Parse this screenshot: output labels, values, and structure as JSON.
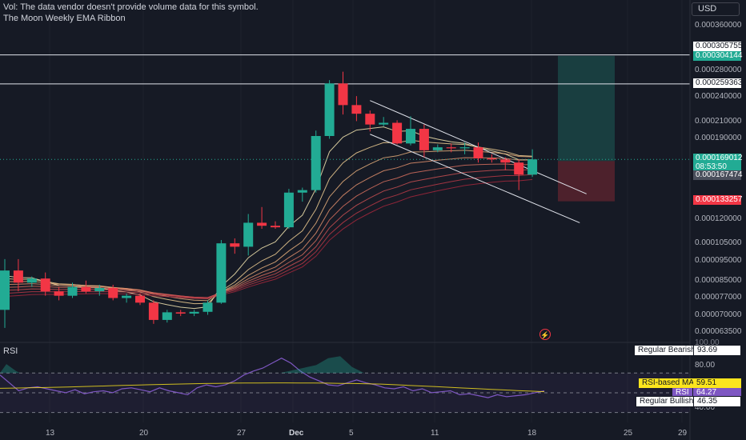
{
  "header": {
    "vol_notice": "Vol: The data vendor doesn't provide volume data for this symbol.",
    "indicator_name": "The Moon Weekly EMA Ribbon"
  },
  "currency_button": "USD",
  "price_axis": {
    "ticks": [
      "0.000360000",
      "0.000280000",
      "0.000240000",
      "0.000210000",
      "0.000190000",
      "0.000120000",
      "0.000105000",
      "0.000095000",
      "0.000085000",
      "0.000077000",
      "0.000070000",
      "0.000063500"
    ],
    "tags": {
      "upper_line": "0.000305755",
      "target": "0.000304144",
      "resistance": "0.000259363",
      "last_price": "0.000169012",
      "countdown": "08:53:50",
      "open_price": "0.000167474",
      "stop": "0.000133257"
    },
    "scale": "log"
  },
  "rsi_panel": {
    "title": "RSI",
    "ticks": [
      "100.00",
      "80.00",
      "40.00"
    ],
    "labels": {
      "regular_bearish": "Regular Bearish",
      "regular_bearish_value": "93.69",
      "rsi_ma": "RSI-based MA",
      "rsi_ma_value": "59.51",
      "rsi": "RSI",
      "rsi_value": "64.27",
      "regular_bullish": "Regular Bullish",
      "regular_bullish_value": "46.35"
    },
    "colors": {
      "rsi_line": "#7e57c2",
      "ma_line": "#fbe51d",
      "band": "#7e57c2"
    }
  },
  "time_axis": {
    "ticks": [
      "13",
      "20",
      "27",
      "Dec",
      "5",
      "11",
      "18",
      "25",
      "29"
    ]
  },
  "colors": {
    "up": "#22ab94",
    "down": "#f23645",
    "background": "#161a25"
  },
  "chart_data": {
    "type": "candlestick",
    "y_scale": "log",
    "candles": [
      {
        "o": 7.2e-05,
        "h": 9.6e-05,
        "l": 6.5e-05,
        "c": 9e-05
      },
      {
        "o": 9e-05,
        "h": 9.6e-05,
        "l": 8e-05,
        "c": 8.4e-05
      },
      {
        "o": 8.4e-05,
        "h": 8.7e-05,
        "l": 8.2e-05,
        "c": 8.6e-05
      },
      {
        "o": 8.6e-05,
        "h": 8.9e-05,
        "l": 7.8e-05,
        "c": 8e-05
      },
      {
        "o": 8e-05,
        "h": 8.2e-05,
        "l": 7.6e-05,
        "c": 7.8e-05
      },
      {
        "o": 7.8e-05,
        "h": 8.4e-05,
        "l": 7.7e-05,
        "c": 8.2e-05
      },
      {
        "o": 8.2e-05,
        "h": 8.5e-05,
        "l": 7.9e-05,
        "c": 8e-05
      },
      {
        "o": 8e-05,
        "h": 8.3e-05,
        "l": 7.8e-05,
        "c": 8.15e-05
      },
      {
        "o": 8.15e-05,
        "h": 8.3e-05,
        "l": 7.6e-05,
        "c": 7.7e-05
      },
      {
        "o": 7.7e-05,
        "h": 7.9e-05,
        "l": 7.5e-05,
        "c": 7.8e-05
      },
      {
        "o": 7.8e-05,
        "h": 7.9e-05,
        "l": 7.4e-05,
        "c": 7.5e-05
      },
      {
        "o": 7.5e-05,
        "h": 7.6e-05,
        "l": 6.65e-05,
        "c": 6.8e-05
      },
      {
        "o": 6.8e-05,
        "h": 7.2e-05,
        "l": 6.7e-05,
        "c": 7.1e-05
      },
      {
        "o": 7.1e-05,
        "h": 7.2e-05,
        "l": 6.95e-05,
        "c": 7.05e-05
      },
      {
        "o": 7.05e-05,
        "h": 7.2e-05,
        "l": 6.95e-05,
        "c": 7.12e-05
      },
      {
        "o": 7.12e-05,
        "h": 7.6e-05,
        "l": 7e-05,
        "c": 7.5e-05
      },
      {
        "o": 7.5e-05,
        "h": 0.000107,
        "l": 7.45e-05,
        "c": 0.000105
      },
      {
        "o": 0.000105,
        "h": 0.000108,
        "l": 9.9e-05,
        "c": 0.000103
      },
      {
        "o": 0.000103,
        "h": 0.000124,
        "l": 9.8e-05,
        "c": 0.000118
      },
      {
        "o": 0.000118,
        "h": 0.000129,
        "l": 0.000114,
        "c": 0.000116
      },
      {
        "o": 0.000116,
        "h": 0.000119,
        "l": 0.000114,
        "c": 0.000115
      },
      {
        "o": 0.000115,
        "h": 0.000143,
        "l": 0.000114,
        "c": 0.00014
      },
      {
        "o": 0.00014,
        "h": 0.000144,
        "l": 0.000133,
        "c": 0.000142
      },
      {
        "o": 0.000142,
        "h": 0.000199,
        "l": 0.00014,
        "c": 0.000193
      },
      {
        "o": 0.000193,
        "h": 0.000265,
        "l": 0.00019,
        "c": 0.00026
      },
      {
        "o": 0.00026,
        "h": 0.000278,
        "l": 0.000218,
        "c": 0.00023
      },
      {
        "o": 0.00023,
        "h": 0.000242,
        "l": 0.00021,
        "c": 0.000219
      },
      {
        "o": 0.000219,
        "h": 0.000223,
        "l": 0.000198,
        "c": 0.000206
      },
      {
        "o": 0.000206,
        "h": 0.000215,
        "l": 0.000204,
        "c": 0.000208
      },
      {
        "o": 0.000208,
        "h": 0.000211,
        "l": 0.000184,
        "c": 0.000185
      },
      {
        "o": 0.000185,
        "h": 0.000216,
        "l": 0.000183,
        "c": 0.000201
      },
      {
        "o": 0.000201,
        "h": 0.000206,
        "l": 0.000171,
        "c": 0.000178
      },
      {
        "o": 0.000178,
        "h": 0.000184,
        "l": 0.000176,
        "c": 0.000181
      },
      {
        "o": 0.000181,
        "h": 0.000185,
        "l": 0.000176,
        "c": 0.00018
      },
      {
        "o": 0.00018,
        "h": 0.000186,
        "l": 0.000174,
        "c": 0.000181
      },
      {
        "o": 0.000181,
        "h": 0.000186,
        "l": 0.000166,
        "c": 0.00017
      },
      {
        "o": 0.00017,
        "h": 0.000174,
        "l": 0.000166,
        "c": 0.000169
      },
      {
        "o": 0.000169,
        "h": 0.000171,
        "l": 0.000159,
        "c": 0.000166
      },
      {
        "o": 0.000166,
        "h": 0.000169,
        "l": 0.000142,
        "c": 0.000155
      },
      {
        "o": 0.000155,
        "h": 0.000179,
        "l": 0.000153,
        "c": 0.000169
      }
    ],
    "horizontal_lines": [
      0.000305755,
      0.000259363
    ],
    "position": {
      "entry": 0.000167474,
      "target": 0.000304144,
      "stop": 0.000133257
    },
    "channel": {
      "upper": [
        [
          27,
          0.000236
        ],
        [
          43,
          0.000139
        ]
      ],
      "lower": [
        [
          27,
          0.000195
        ],
        [
          42.5,
          0.000118
        ]
      ]
    },
    "ribbon_count": 8
  }
}
